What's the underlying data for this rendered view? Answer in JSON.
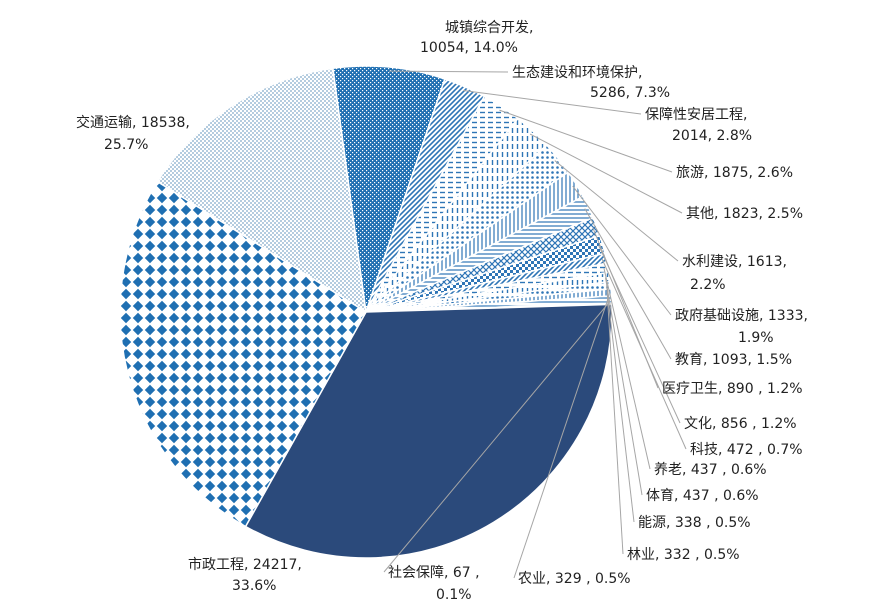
{
  "chart_data": {
    "type": "pie",
    "unit_note": "",
    "slices": [
      {
        "name": "城镇综合开发",
        "value": 10054,
        "percent": "14.0%",
        "label_lines": [
          "城镇综合开发,",
          "10054, 14.0%"
        ],
        "color": "#9bbcd6",
        "pattern": "fine-dots"
      },
      {
        "name": "生态建设和环境保护",
        "value": 5286,
        "percent": "7.3%",
        "label_lines": [
          "生态建设和环境保护,",
          "5286, 7.3%"
        ],
        "color": "#1f6fb2",
        "pattern": "dense-check"
      },
      {
        "name": "保障性安居工程",
        "value": 2014,
        "percent": "2.8%",
        "label_lines": [
          "保障性安居工程,",
          "2014, 2.8%"
        ],
        "color": "#2e75b6",
        "pattern": "diag"
      },
      {
        "name": "旅游",
        "value": 1875,
        "percent": "2.6%",
        "label_lines": [
          "旅游, 1875, 2.6%"
        ],
        "color": "#2e75b6",
        "pattern": "horiz-dash"
      },
      {
        "name": "其他",
        "value": 1823,
        "percent": "2.5%",
        "label_lines": [
          "其他, 1823, 2.5%"
        ],
        "color": "#2e75b6",
        "pattern": "vert-dash"
      },
      {
        "name": "水利建设",
        "value": 1613,
        "percent": "2.2%",
        "label_lines": [
          "水利建设, 1613,",
          "2.2%"
        ],
        "color": "#2e75b6",
        "pattern": "sparse-dots"
      },
      {
        "name": "政府基础设施",
        "value": 1333,
        "percent": "1.9%",
        "label_lines": [
          "政府基础设施, 1333,",
          "1.9%"
        ],
        "color": "#2e75b6",
        "pattern": "vert-lines"
      },
      {
        "name": "教育",
        "value": 1093,
        "percent": "1.5%",
        "label_lines": [
          "教育, 1093, 1.5%"
        ],
        "color": "#2e75b6",
        "pattern": "horiz-lines"
      },
      {
        "name": "医疗卫生",
        "value": 890,
        "percent": "1.2%",
        "label_lines": [
          "医疗卫生, 890 , 1.2%"
        ],
        "color": "#2e75b6",
        "pattern": "diag-cross"
      },
      {
        "name": "文化",
        "value": 856,
        "percent": "1.2%",
        "label_lines": [
          "文化, 856 , 1.2%"
        ],
        "color": "#2e75b6",
        "pattern": "checker"
      },
      {
        "name": "科技",
        "value": 472,
        "percent": "0.7%",
        "label_lines": [
          "科技, 472 , 0.7%"
        ],
        "color": "#2e75b6",
        "pattern": "diag"
      },
      {
        "name": "养老",
        "value": 437,
        "percent": "0.6%",
        "label_lines": [
          "养老, 437 , 0.6%"
        ],
        "color": "#2e75b6",
        "pattern": "horiz-dash"
      },
      {
        "name": "体育",
        "value": 437,
        "percent": "0.6%",
        "label_lines": [
          "体育, 437 , 0.6%"
        ],
        "color": "#2e75b6",
        "pattern": "vert-dash"
      },
      {
        "name": "能源",
        "value": 338,
        "percent": "0.5%",
        "label_lines": [
          "能源, 338 , 0.5%"
        ],
        "color": "#2e75b6",
        "pattern": "sparse-dots"
      },
      {
        "name": "林业",
        "value": 332,
        "percent": "0.5%",
        "label_lines": [
          "林业, 332 , 0.5%"
        ],
        "color": "#2e75b6",
        "pattern": "vert-lines"
      },
      {
        "name": "农业",
        "value": 329,
        "percent": "0.5%",
        "label_lines": [
          "农业, 329 , 0.5%"
        ],
        "color": "#2e75b6",
        "pattern": "horiz-lines"
      },
      {
        "name": "社会保障",
        "value": 67,
        "percent": "0.1%",
        "label_lines": [
          "社会保障, 67 ,",
          "0.1%"
        ],
        "color": "#2e75b6",
        "pattern": "solid"
      },
      {
        "name": "市政工程",
        "value": 24217,
        "percent": "33.6%",
        "label_lines": [
          "市政工程, 24217,",
          "33.6%"
        ],
        "color": "#2b4a7b",
        "pattern": "solid"
      },
      {
        "name": "交通运输",
        "value": 18538,
        "percent": "25.7%",
        "label_lines": [
          "交通运输, 18538,",
          "25.7%"
        ],
        "color": "#1f6fb2",
        "pattern": "diamond"
      }
    ]
  }
}
